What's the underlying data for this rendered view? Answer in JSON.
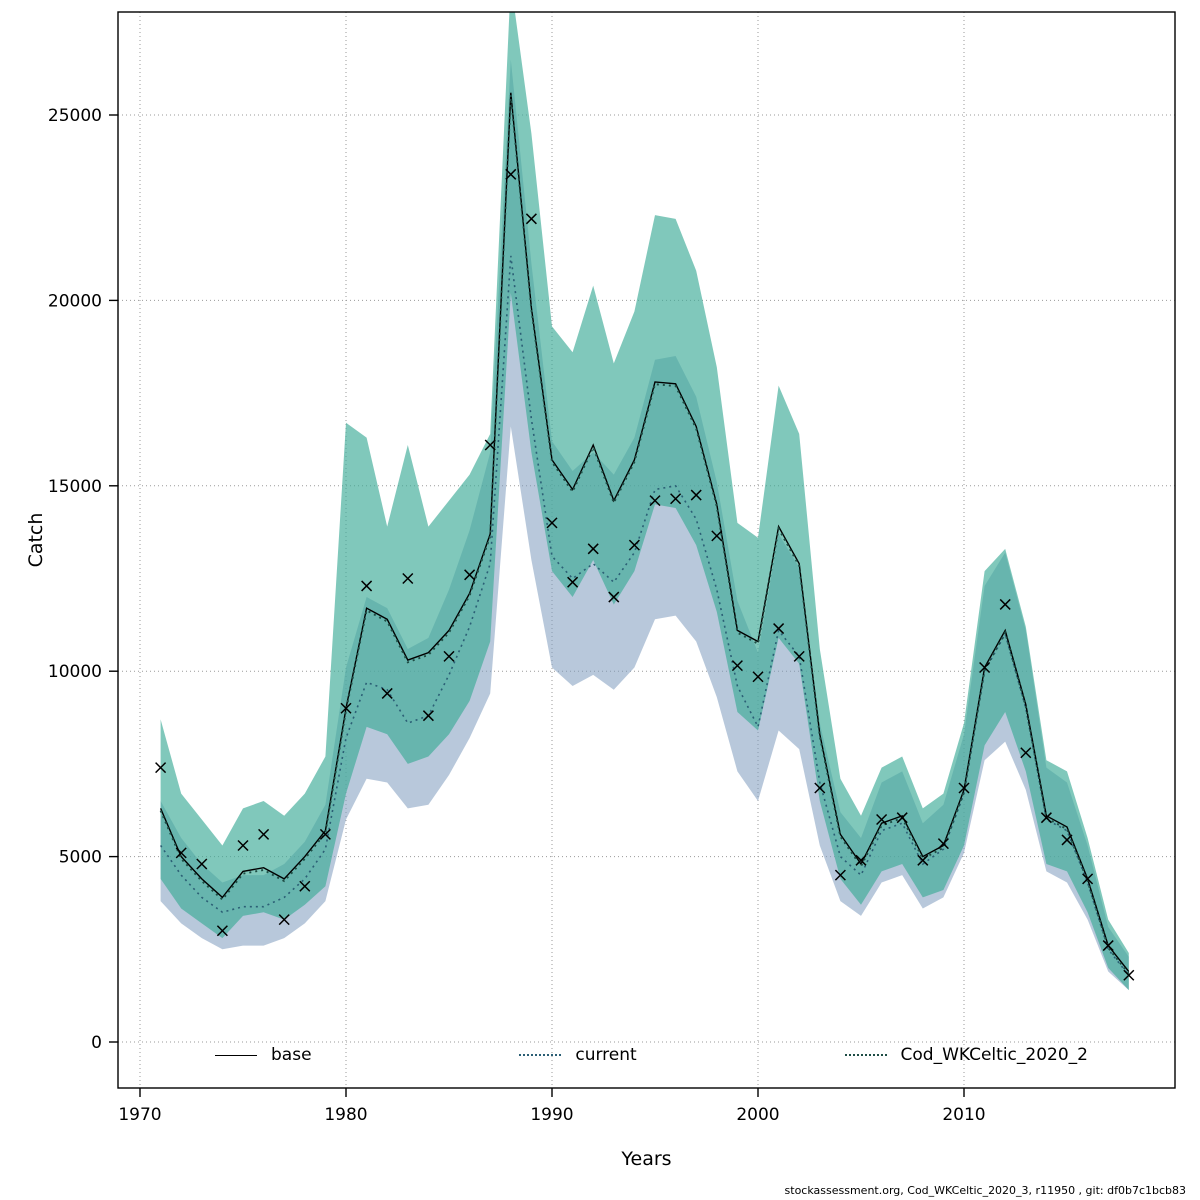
{
  "footer": {
    "text": "stockassessment.org, Cod_WKCeltic_2020_3, r11950 , git: df0b7c1bcb83"
  },
  "chart_data": {
    "type": "line",
    "title": "",
    "xlabel": "Years",
    "ylabel": "Catch",
    "ylim": [
      0,
      27800
    ],
    "x_ticks": [
      1970,
      1980,
      1990,
      2000,
      2010
    ],
    "y_ticks": [
      0,
      5000,
      10000,
      15000,
      20000,
      25000
    ],
    "grid": true,
    "grid_color": "#9a9a9a",
    "years": [
      1971,
      1972,
      1973,
      1974,
      1975,
      1976,
      1977,
      1978,
      1979,
      1980,
      1981,
      1982,
      1983,
      1984,
      1985,
      1986,
      1987,
      1988,
      1989,
      1990,
      1991,
      1992,
      1993,
      1994,
      1995,
      1996,
      1997,
      1998,
      1999,
      2000,
      2001,
      2002,
      2003,
      2004,
      2005,
      2006,
      2007,
      2008,
      2009,
      2010,
      2011,
      2012,
      2013,
      2014,
      2015,
      2016,
      2017,
      2018
    ],
    "bands": [
      {
        "name": "current-confidence-band",
        "color": "rgba(125,155,190,0.55)",
        "hi": [
          6500,
          5500,
          4800,
          4300,
          4500,
          4500,
          4800,
          5400,
          6400,
          10100,
          12000,
          11700,
          10600,
          10900,
          12200,
          13800,
          15900,
          26500,
          21000,
          16200,
          15400,
          15900,
          15300,
          16300,
          18400,
          18500,
          17400,
          15100,
          11900,
          10500,
          13700,
          12800,
          8600,
          6200,
          5500,
          7000,
          7300,
          5900,
          6400,
          8300,
          12300,
          13200,
          11100,
          7400,
          7000,
          5300,
          3100,
          2300
        ],
        "lo": [
          3800,
          3200,
          2800,
          2500,
          2600,
          2600,
          2800,
          3200,
          3800,
          6000,
          7100,
          7000,
          6300,
          6400,
          7200,
          8200,
          9400,
          16600,
          13000,
          10100,
          9600,
          9900,
          9500,
          10100,
          11400,
          11500,
          10800,
          9300,
          7300,
          6500,
          8400,
          7900,
          5300,
          3800,
          3400,
          4300,
          4500,
          3600,
          3900,
          5100,
          7600,
          8100,
          6800,
          4600,
          4300,
          3300,
          1900,
          1400
        ]
      },
      {
        "name": "cod-wkceltic-confidence-band",
        "color": "rgba(60,170,150,0.65)",
        "hi": [
          8700,
          6700,
          6000,
          5300,
          6300,
          6500,
          6100,
          6700,
          7700,
          16700,
          16300,
          13900,
          16100,
          13900,
          14600,
          15300,
          16400,
          28600,
          24500,
          19300,
          18600,
          20400,
          18300,
          19700,
          22300,
          22200,
          20800,
          18200,
          14000,
          13600,
          17700,
          16400,
          10600,
          7100,
          6100,
          7400,
          7700,
          6300,
          6700,
          8600,
          12700,
          13300,
          11200,
          7600,
          7300,
          5500,
          3300,
          2400
        ],
        "lo": [
          4400,
          3600,
          3200,
          2800,
          3400,
          3500,
          3300,
          3700,
          4200,
          6700,
          8500,
          8300,
          7500,
          7700,
          8300,
          9200,
          10800,
          20200,
          15900,
          12700,
          12000,
          13000,
          11800,
          12700,
          14500,
          14400,
          13400,
          11600,
          8900,
          8400,
          10900,
          10200,
          6500,
          4400,
          3700,
          4600,
          4800,
          3900,
          4100,
          5300,
          8000,
          8900,
          7300,
          4800,
          4600,
          3500,
          2000,
          1400
        ]
      }
    ],
    "series": [
      {
        "name": "current",
        "color": "#2B5F75",
        "dash": "2,4",
        "width": 1.6,
        "values": [
          5300,
          4500,
          3900,
          3500,
          3650,
          3650,
          3900,
          4400,
          5200,
          8200,
          9700,
          9500,
          8600,
          8800,
          9900,
          11200,
          12900,
          21200,
          16800,
          13100,
          12500,
          12900,
          12400,
          13200,
          14900,
          15000,
          14100,
          12200,
          9600,
          8500,
          11100,
          10400,
          7000,
          5000,
          4500,
          5700,
          5900,
          4800,
          5200,
          6700,
          10000,
          11000,
          9000,
          6000,
          5700,
          4300,
          2500,
          1800
        ]
      },
      {
        "name": "base",
        "color": "#000000",
        "dash": "",
        "width": 1.4,
        "values": [
          6300,
          5000,
          4400,
          3900,
          4600,
          4700,
          4400,
          5000,
          5700,
          9000,
          11700,
          11400,
          10300,
          10500,
          11100,
          12100,
          13700,
          25600,
          19800,
          15700,
          14900,
          16100,
          14600,
          15700,
          17800,
          17750,
          16600,
          14500,
          11100,
          10800,
          13900,
          12900,
          8300,
          5600,
          4800,
          5900,
          6100,
          5000,
          5300,
          6800,
          10100,
          11100,
          9100,
          6100,
          5800,
          4400,
          2600,
          1900
        ]
      },
      {
        "name": "Cod_WKCeltic_2020_2",
        "color": "#1E4D45",
        "dash": "2,4",
        "width": 1.9,
        "values": [
          6240,
          4940,
          4340,
          3840,
          4540,
          4640,
          4340,
          4940,
          5640,
          8940,
          11640,
          11340,
          10240,
          10440,
          11040,
          12040,
          13640,
          25540,
          19740,
          15640,
          14840,
          16040,
          14540,
          15640,
          17740,
          17690,
          16540,
          14440,
          11040,
          10740,
          13840,
          12840,
          8240,
          5540,
          4740,
          5840,
          6040,
          4940,
          5240,
          6740,
          10040,
          11040,
          9040,
          6040,
          5740,
          4340,
          2540,
          1840
        ]
      }
    ],
    "markers": {
      "name": "observations",
      "symbol": "x",
      "color": "#000000",
      "values": [
        7400,
        5100,
        4800,
        3000,
        5300,
        5600,
        3300,
        4200,
        5600,
        9000,
        12300,
        9400,
        12500,
        8800,
        10400,
        12600,
        16100,
        23400,
        22200,
        14000,
        12400,
        13300,
        12000,
        13400,
        14600,
        14650,
        14750,
        13650,
        10150,
        9850,
        11150,
        10400,
        6850,
        4500,
        4900,
        6000,
        6050,
        4900,
        5350,
        6850,
        10100,
        11800,
        7800,
        6050,
        5450,
        4400,
        2600,
        1800
      ]
    },
    "legend": [
      {
        "label": "base",
        "color": "#000000",
        "dash": false
      },
      {
        "label": "current",
        "color": "#2B5F75",
        "dash": true
      },
      {
        "label": "Cod_WKCeltic_2020_2",
        "color": "#1E4D45",
        "dash": true
      }
    ]
  }
}
